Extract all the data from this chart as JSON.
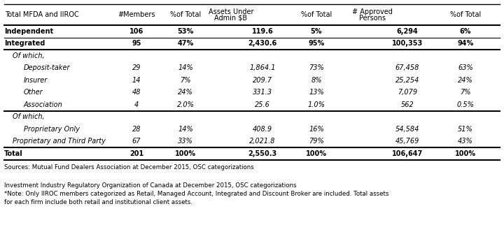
{
  "header_label": "Total MFDA and IIROC",
  "col_headers": [
    "#Members",
    "%of Total",
    "Assets Under\nAdmin $B",
    "%of Total",
    "# Approved\nPersons",
    "%of Total"
  ],
  "rows": [
    {
      "label": "Independent",
      "bold": true,
      "italic": false,
      "indent": 0,
      "vals": [
        "106",
        "53%",
        "119.6",
        "5%",
        "6,294",
        "6%"
      ],
      "section": false
    },
    {
      "label": "Integrated",
      "bold": true,
      "italic": false,
      "indent": 0,
      "vals": [
        "95",
        "47%",
        "2,430.6",
        "95%",
        "100,353",
        "94%"
      ],
      "section": false
    },
    {
      "label": "Of which,",
      "bold": false,
      "italic": true,
      "indent": 1,
      "vals": [
        "",
        "",
        "",
        "",
        "",
        ""
      ],
      "section": true
    },
    {
      "label": "Deposit-taker",
      "bold": false,
      "italic": true,
      "indent": 2,
      "vals": [
        "29",
        "14%",
        "1,864.1",
        "73%",
        "67,458",
        "63%"
      ],
      "section": false
    },
    {
      "label": "Insurer",
      "bold": false,
      "italic": true,
      "indent": 2,
      "vals": [
        "14",
        "7%",
        "209.7",
        "8%",
        "25,254",
        "24%"
      ],
      "section": false
    },
    {
      "label": "Other",
      "bold": false,
      "italic": true,
      "indent": 2,
      "vals": [
        "48",
        "24%",
        "331.3",
        "13%",
        "7,079",
        "7%"
      ],
      "section": false
    },
    {
      "label": "Association",
      "bold": false,
      "italic": true,
      "indent": 2,
      "vals": [
        "4",
        "2.0%",
        "25.6",
        "1.0%",
        "562",
        "0.5%"
      ],
      "section": false
    },
    {
      "label": "Of which,",
      "bold": false,
      "italic": true,
      "indent": 1,
      "vals": [
        "",
        "",
        "",
        "",
        "",
        ""
      ],
      "section": true
    },
    {
      "label": "Proprietary Only",
      "bold": false,
      "italic": true,
      "indent": 2,
      "vals": [
        "28",
        "14%",
        "408.9",
        "16%",
        "54,584",
        "51%"
      ],
      "section": false
    },
    {
      "label": "Proprietary and Third Party",
      "bold": false,
      "italic": true,
      "indent": 1,
      "vals": [
        "67",
        "33%",
        "2,021.8",
        "79%",
        "45,769",
        "43%"
      ],
      "section": false
    },
    {
      "label": "Total",
      "bold": true,
      "italic": false,
      "indent": 0,
      "vals": [
        "201",
        "100%",
        "2,550.3",
        "100%",
        "106,647",
        "100%"
      ],
      "section": false
    }
  ],
  "thick_lines_after_row_idx": [
    1,
    6,
    9
  ],
  "footnotes": [
    "Sources: Mutual Fund Dealers Association at December 2015, OSC categorizations",
    "",
    "Investment Industry Regulatory Organization of Canada at December 2015, OSC categorizations",
    "*Note: Only IIROC members categorized as Retail, Managed Account, Integrated and Discount Broker are included. Total assets",
    "for each firm include both retail and institutional client assets."
  ],
  "bg_color": "#ffffff",
  "text_color": "#000000",
  "fs_table": 7.0,
  "fs_footnote": 6.2
}
